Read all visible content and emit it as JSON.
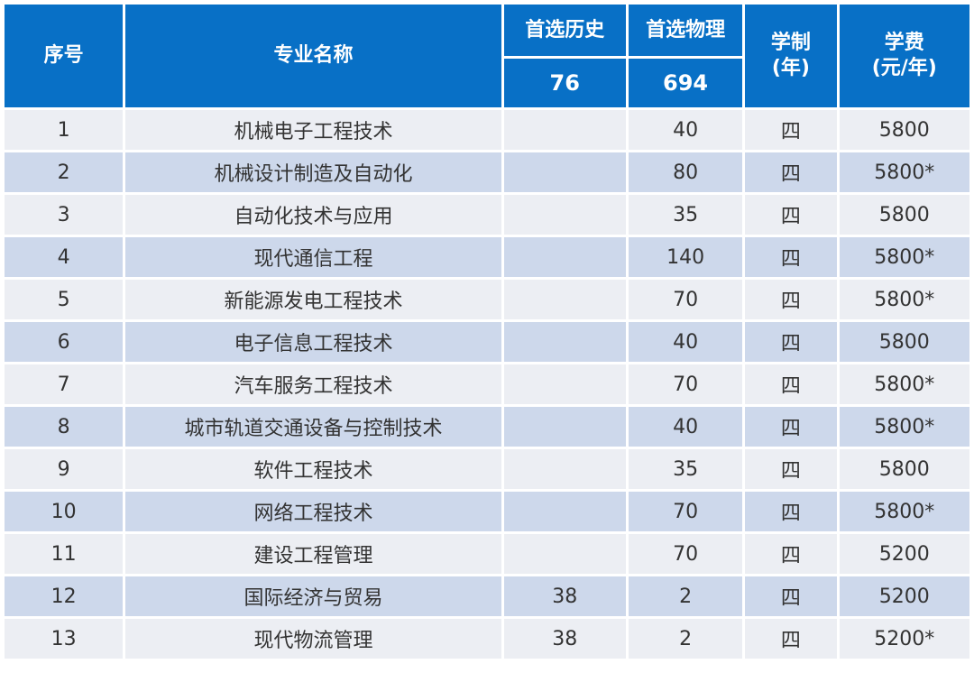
{
  "header": {
    "col_no": "序号",
    "col_major": "专业名称",
    "col_history": "首选历史",
    "col_physics": "首选物理",
    "history_total": "76",
    "physics_total": "694",
    "col_years_line1": "学制",
    "col_years_line2": "(年)",
    "col_fee_line1": "学费",
    "col_fee_line2": "(元/年)"
  },
  "rows": [
    {
      "no": "1",
      "major": "机械电子工程技术",
      "history": "",
      "physics": "40",
      "years": "四",
      "fee": "5800"
    },
    {
      "no": "2",
      "major": "机械设计制造及自动化",
      "history": "",
      "physics": "80",
      "years": "四",
      "fee": "5800*"
    },
    {
      "no": "3",
      "major": "自动化技术与应用",
      "history": "",
      "physics": "35",
      "years": "四",
      "fee": "5800"
    },
    {
      "no": "4",
      "major": "现代通信工程",
      "history": "",
      "physics": "140",
      "years": "四",
      "fee": "5800*"
    },
    {
      "no": "5",
      "major": "新能源发电工程技术",
      "history": "",
      "physics": "70",
      "years": "四",
      "fee": "5800*"
    },
    {
      "no": "6",
      "major": "电子信息工程技术",
      "history": "",
      "physics": "40",
      "years": "四",
      "fee": "5800"
    },
    {
      "no": "7",
      "major": "汽车服务工程技术",
      "history": "",
      "physics": "70",
      "years": "四",
      "fee": "5800*"
    },
    {
      "no": "8",
      "major": "城市轨道交通设备与控制技术",
      "history": "",
      "physics": "40",
      "years": "四",
      "fee": "5800*"
    },
    {
      "no": "9",
      "major": "软件工程技术",
      "history": "",
      "physics": "35",
      "years": "四",
      "fee": "5800"
    },
    {
      "no": "10",
      "major": "网络工程技术",
      "history": "",
      "physics": "70",
      "years": "四",
      "fee": "5800*"
    },
    {
      "no": "11",
      "major": "建设工程管理",
      "history": "",
      "physics": "70",
      "years": "四",
      "fee": "5200"
    },
    {
      "no": "12",
      "major": "国际经济与贸易",
      "history": "38",
      "physics": "2",
      "years": "四",
      "fee": "5200"
    },
    {
      "no": "13",
      "major": "现代物流管理",
      "history": "38",
      "physics": "2",
      "years": "四",
      "fee": "5200*"
    }
  ],
  "colors": {
    "header_bg": "#0870c6",
    "row_light": "#eceef3",
    "row_dark": "#cdd8eb"
  }
}
